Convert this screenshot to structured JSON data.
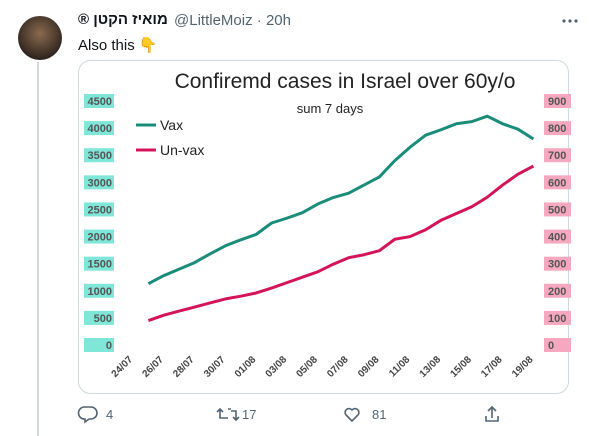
{
  "tweet": {
    "name": "מואיז הקטן ®",
    "handle": "@LittleMoiz",
    "separator": "·",
    "time": "20h",
    "text": "Also this 👇",
    "replies": 4,
    "retweets": 17,
    "likes": 81
  },
  "chart_data": {
    "type": "line",
    "title": "Confiremd cases in Israel over 60y/o",
    "subtitle": "sum 7 days",
    "categories": [
      "24/07",
      null,
      "26/07",
      null,
      "28/07",
      null,
      "30/07",
      null,
      "01/08",
      null,
      "03/08",
      null,
      "05/08",
      null,
      "07/08",
      null,
      "09/08",
      null,
      "11/08",
      null,
      "13/08",
      null,
      "15/08",
      null,
      "17/08",
      null,
      "19/08"
    ],
    "series": [
      {
        "name": "Vax",
        "color": "#1a8c7a",
        "values": [
          null,
          1130,
          1280,
          1400,
          1520,
          1680,
          1830,
          1940,
          2040,
          2250,
          2340,
          2440,
          2600,
          2720,
          2800,
          2950,
          3100,
          3400,
          3650,
          3870,
          3970,
          4080,
          4120,
          4220,
          4080,
          3980,
          3800
        ]
      },
      {
        "name": "Un-vax",
        "color": "#d4145a",
        "axis": "y2",
        "values": [
          null,
          90,
          110,
          125,
          140,
          155,
          170,
          180,
          192,
          210,
          230,
          250,
          270,
          298,
          322,
          333,
          348,
          390,
          400,
          425,
          460,
          485,
          510,
          545,
          590,
          630,
          660
        ]
      }
    ],
    "ylim": [
      0,
      4500
    ],
    "yticks": [
      0,
      500,
      1000,
      1500,
      2000,
      2500,
      3000,
      3500,
      4000,
      4500
    ],
    "y2lim": [
      0,
      900
    ],
    "y2ticks": [
      0,
      100,
      200,
      300,
      400,
      500,
      600,
      700,
      800,
      900
    ],
    "grid": false,
    "legend": "upper left"
  }
}
